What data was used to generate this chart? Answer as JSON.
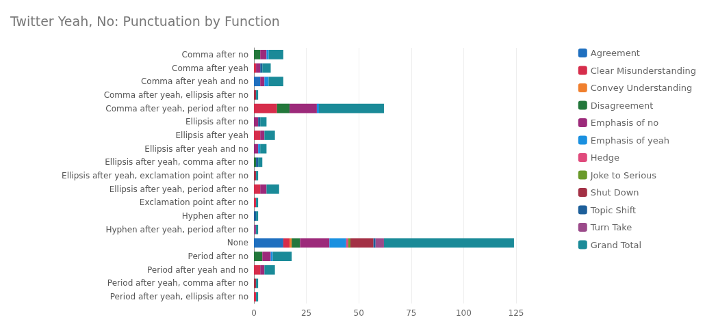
{
  "chart_data": {
    "type": "bar",
    "orientation": "horizontal",
    "stacked": true,
    "title": "Twitter Yeah, No: Punctuation by Function",
    "categories": [
      "Comma after no",
      "Comma after yeah",
      "Comma after yeah and no",
      "Comma after yeah, ellipsis after no",
      "Comma after yeah, period after no",
      "Ellipsis after no",
      "Ellipsis after yeah",
      "Ellipsis after yeah and no",
      "Ellipsis after yeah, comma after no",
      "Ellipsis after yeah, exclamation point after no",
      "Ellipsis after yeah, period after no",
      "Exclamation point after no",
      "Hyphen after no",
      "Hyphen after yeah, period after no",
      "None",
      "Period after no",
      "Period after yeah and no",
      "Period after yeah, comma after no",
      "Period after yeah, ellipsis after no"
    ],
    "series": [
      {
        "name": "Agreement",
        "color": "#1f6fbf",
        "values": [
          null,
          null,
          3,
          null,
          null,
          null,
          null,
          null,
          null,
          null,
          null,
          null,
          null,
          null,
          14,
          null,
          null,
          null,
          null
        ]
      },
      {
        "name": "Clear Misunderstanding",
        "color": "#d62d4b",
        "values": [
          null,
          1,
          null,
          null,
          11,
          null,
          3,
          null,
          null,
          null,
          3,
          1,
          null,
          null,
          3,
          null,
          3,
          null,
          1
        ]
      },
      {
        "name": "Convey Understanding",
        "color": "#f07f2d",
        "values": [
          null,
          null,
          null,
          null,
          null,
          null,
          null,
          null,
          null,
          null,
          null,
          null,
          null,
          null,
          1,
          null,
          null,
          null,
          null
        ]
      },
      {
        "name": "Disagreement",
        "color": "#23773b",
        "values": [
          3,
          null,
          null,
          null,
          6,
          null,
          null,
          null,
          1,
          null,
          null,
          null,
          null,
          null,
          4,
          4,
          null,
          null,
          null
        ]
      },
      {
        "name": "Emphasis of no",
        "color": "#9c2a7a",
        "values": [
          3,
          2,
          2,
          null,
          13,
          2,
          2,
          2,
          null,
          null,
          3,
          null,
          null,
          null,
          14,
          4,
          2,
          null,
          null
        ]
      },
      {
        "name": "Emphasis of yeah",
        "color": "#1a90e0",
        "values": [
          1,
          null,
          2,
          null,
          1,
          null,
          null,
          1,
          null,
          null,
          null,
          null,
          null,
          null,
          8,
          1,
          null,
          null,
          null
        ]
      },
      {
        "name": "Hedge",
        "color": "#e04a7c",
        "values": [
          null,
          null,
          null,
          null,
          null,
          null,
          null,
          null,
          null,
          null,
          null,
          null,
          null,
          null,
          1,
          null,
          null,
          null,
          null
        ]
      },
      {
        "name": "Joke to Serious",
        "color": "#6a9a2a",
        "values": [
          null,
          null,
          null,
          null,
          null,
          null,
          null,
          null,
          null,
          null,
          null,
          null,
          null,
          null,
          1,
          null,
          null,
          null,
          null
        ]
      },
      {
        "name": "Shut Down",
        "color": "#a33045",
        "values": [
          null,
          null,
          null,
          1,
          null,
          null,
          null,
          null,
          null,
          1,
          null,
          null,
          null,
          null,
          11,
          null,
          null,
          1,
          null
        ]
      },
      {
        "name": "Topic Shift",
        "color": "#1d5f9a",
        "values": [
          null,
          1,
          null,
          null,
          null,
          1,
          null,
          null,
          1,
          null,
          null,
          null,
          1,
          null,
          1,
          null,
          null,
          null,
          null
        ]
      },
      {
        "name": "Turn Take",
        "color": "#9b4a8a",
        "values": [
          null,
          null,
          null,
          null,
          null,
          null,
          null,
          null,
          null,
          null,
          null,
          null,
          null,
          1,
          4,
          null,
          null,
          null,
          null
        ]
      },
      {
        "name": "Grand Total",
        "color": "#1a8a98",
        "values": [
          7,
          4,
          7,
          1,
          31,
          3,
          5,
          3,
          2,
          1,
          6,
          1,
          1,
          1,
          62,
          9,
          5,
          1,
          1
        ]
      }
    ],
    "xlim": [
      0,
      125
    ],
    "xticks": [
      0,
      25,
      50,
      75,
      100,
      125
    ],
    "grid": "x",
    "legend": "right"
  }
}
